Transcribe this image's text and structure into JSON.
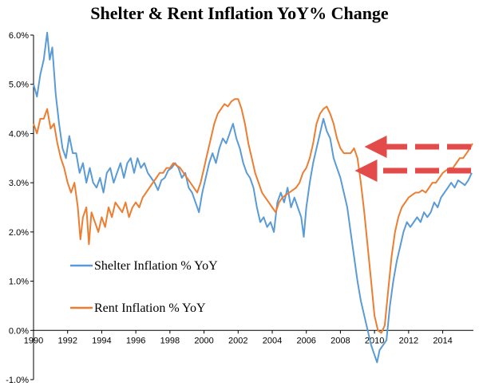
{
  "chart_data": {
    "type": "line",
    "title": "Shelter & Rent Inflation YoY% Change",
    "xlabel": "",
    "ylabel": "",
    "xlim": [
      1990,
      2015.8
    ],
    "ylim": [
      -1.0,
      6.0
    ],
    "x_ticks": [
      "1990",
      "1992",
      "1994",
      "1996",
      "1998",
      "2000",
      "2002",
      "2004",
      "2006",
      "2008",
      "2010",
      "2012",
      "2014"
    ],
    "y_ticks": [
      "6.0%",
      "5.0%",
      "4.0%",
      "3.0%",
      "2.0%",
      "1.0%",
      "0.0%",
      "-1.0%"
    ],
    "grid": false,
    "legend_position": "middle-left",
    "annotations": [
      "arrow pointing to latest Rent Inflation value",
      "arrow pointing to latest Shelter Inflation value"
    ],
    "series": [
      {
        "name": "Shelter Inflation % YoY",
        "color": "#5b9bd5",
        "points": [
          [
            1990.0,
            5.0
          ],
          [
            1990.2,
            4.75
          ],
          [
            1990.4,
            5.2
          ],
          [
            1990.6,
            5.5
          ],
          [
            1990.8,
            6.05
          ],
          [
            1990.95,
            5.5
          ],
          [
            1991.1,
            5.75
          ],
          [
            1991.3,
            4.8
          ],
          [
            1991.5,
            4.2
          ],
          [
            1991.7,
            3.7
          ],
          [
            1991.9,
            3.5
          ],
          [
            1992.1,
            3.95
          ],
          [
            1992.3,
            3.6
          ],
          [
            1992.5,
            3.6
          ],
          [
            1992.7,
            3.2
          ],
          [
            1992.9,
            3.4
          ],
          [
            1993.1,
            3.0
          ],
          [
            1993.3,
            3.3
          ],
          [
            1993.5,
            3.0
          ],
          [
            1993.7,
            2.9
          ],
          [
            1993.9,
            3.1
          ],
          [
            1994.1,
            2.8
          ],
          [
            1994.3,
            3.2
          ],
          [
            1994.5,
            3.3
          ],
          [
            1994.7,
            3.0
          ],
          [
            1994.9,
            3.2
          ],
          [
            1995.1,
            3.4
          ],
          [
            1995.3,
            3.1
          ],
          [
            1995.5,
            3.4
          ],
          [
            1995.7,
            3.5
          ],
          [
            1995.9,
            3.2
          ],
          [
            1996.1,
            3.5
          ],
          [
            1996.3,
            3.3
          ],
          [
            1996.5,
            3.4
          ],
          [
            1996.7,
            3.2
          ],
          [
            1996.9,
            3.1
          ],
          [
            1997.1,
            3.0
          ],
          [
            1997.3,
            2.85
          ],
          [
            1997.5,
            3.05
          ],
          [
            1997.7,
            3.1
          ],
          [
            1997.9,
            3.25
          ],
          [
            1998.1,
            3.3
          ],
          [
            1998.3,
            3.4
          ],
          [
            1998.5,
            3.3
          ],
          [
            1998.7,
            3.1
          ],
          [
            1998.9,
            3.2
          ],
          [
            1999.1,
            2.9
          ],
          [
            1999.3,
            2.8
          ],
          [
            1999.5,
            2.6
          ],
          [
            1999.7,
            2.4
          ],
          [
            1999.9,
            2.8
          ],
          [
            2000.1,
            3.1
          ],
          [
            2000.3,
            3.4
          ],
          [
            2000.5,
            3.6
          ],
          [
            2000.7,
            3.4
          ],
          [
            2000.9,
            3.7
          ],
          [
            2001.1,
            3.9
          ],
          [
            2001.3,
            3.8
          ],
          [
            2001.5,
            4.0
          ],
          [
            2001.7,
            4.2
          ],
          [
            2001.9,
            3.9
          ],
          [
            2002.1,
            3.7
          ],
          [
            2002.3,
            3.4
          ],
          [
            2002.5,
            3.2
          ],
          [
            2002.7,
            3.1
          ],
          [
            2002.9,
            2.9
          ],
          [
            2003.1,
            2.5
          ],
          [
            2003.3,
            2.2
          ],
          [
            2003.5,
            2.3
          ],
          [
            2003.7,
            2.1
          ],
          [
            2003.9,
            2.2
          ],
          [
            2004.1,
            2.0
          ],
          [
            2004.3,
            2.6
          ],
          [
            2004.5,
            2.8
          ],
          [
            2004.7,
            2.6
          ],
          [
            2004.9,
            2.9
          ],
          [
            2005.1,
            2.5
          ],
          [
            2005.3,
            2.7
          ],
          [
            2005.5,
            2.5
          ],
          [
            2005.7,
            2.3
          ],
          [
            2005.85,
            1.9
          ],
          [
            2006.0,
            2.5
          ],
          [
            2006.2,
            3.0
          ],
          [
            2006.4,
            3.4
          ],
          [
            2006.6,
            3.7
          ],
          [
            2006.8,
            4.0
          ],
          [
            2007.0,
            4.3
          ],
          [
            2007.2,
            4.05
          ],
          [
            2007.4,
            3.9
          ],
          [
            2007.6,
            3.5
          ],
          [
            2007.8,
            3.3
          ],
          [
            2008.0,
            3.1
          ],
          [
            2008.2,
            2.8
          ],
          [
            2008.4,
            2.5
          ],
          [
            2008.6,
            2.0
          ],
          [
            2008.8,
            1.5
          ],
          [
            2009.0,
            1.0
          ],
          [
            2009.2,
            0.6
          ],
          [
            2009.4,
            0.3
          ],
          [
            2009.6,
            0.0
          ],
          [
            2009.8,
            -0.3
          ],
          [
            2010.0,
            -0.5
          ],
          [
            2010.15,
            -0.65
          ],
          [
            2010.3,
            -0.4
          ],
          [
            2010.5,
            -0.3
          ],
          [
            2010.7,
            -0.2
          ],
          [
            2010.9,
            0.5
          ],
          [
            2011.1,
            1.0
          ],
          [
            2011.3,
            1.4
          ],
          [
            2011.5,
            1.7
          ],
          [
            2011.7,
            2.0
          ],
          [
            2011.9,
            2.2
          ],
          [
            2012.1,
            2.1
          ],
          [
            2012.3,
            2.2
          ],
          [
            2012.5,
            2.3
          ],
          [
            2012.7,
            2.2
          ],
          [
            2012.9,
            2.4
          ],
          [
            2013.1,
            2.3
          ],
          [
            2013.3,
            2.4
          ],
          [
            2013.5,
            2.6
          ],
          [
            2013.7,
            2.5
          ],
          [
            2013.9,
            2.7
          ],
          [
            2014.1,
            2.8
          ],
          [
            2014.3,
            2.9
          ],
          [
            2014.5,
            3.0
          ],
          [
            2014.7,
            2.9
          ],
          [
            2014.9,
            3.05
          ],
          [
            2015.1,
            3.0
          ],
          [
            2015.3,
            2.95
          ],
          [
            2015.5,
            3.05
          ],
          [
            2015.7,
            3.2
          ]
        ]
      },
      {
        "name": "Rent Inflation % YoY",
        "color": "#ed7d31",
        "points": [
          [
            1990.0,
            4.2
          ],
          [
            1990.2,
            4.0
          ],
          [
            1990.4,
            4.3
          ],
          [
            1990.6,
            4.3
          ],
          [
            1990.8,
            4.5
          ],
          [
            1991.0,
            4.1
          ],
          [
            1991.2,
            4.2
          ],
          [
            1991.4,
            3.8
          ],
          [
            1991.6,
            3.5
          ],
          [
            1991.8,
            3.3
          ],
          [
            1992.0,
            3.0
          ],
          [
            1992.2,
            2.8
          ],
          [
            1992.4,
            3.0
          ],
          [
            1992.6,
            2.5
          ],
          [
            1992.75,
            1.85
          ],
          [
            1992.9,
            2.3
          ],
          [
            1993.1,
            2.5
          ],
          [
            1993.25,
            1.75
          ],
          [
            1993.4,
            2.4
          ],
          [
            1993.6,
            2.2
          ],
          [
            1993.8,
            2.0
          ],
          [
            1994.0,
            2.3
          ],
          [
            1994.2,
            2.1
          ],
          [
            1994.4,
            2.5
          ],
          [
            1994.6,
            2.3
          ],
          [
            1994.8,
            2.6
          ],
          [
            1995.0,
            2.5
          ],
          [
            1995.2,
            2.4
          ],
          [
            1995.4,
            2.6
          ],
          [
            1995.6,
            2.3
          ],
          [
            1995.8,
            2.5
          ],
          [
            1996.0,
            2.6
          ],
          [
            1996.2,
            2.5
          ],
          [
            1996.4,
            2.7
          ],
          [
            1996.6,
            2.8
          ],
          [
            1996.8,
            2.9
          ],
          [
            1997.0,
            3.0
          ],
          [
            1997.2,
            3.1
          ],
          [
            1997.4,
            3.2
          ],
          [
            1997.6,
            3.2
          ],
          [
            1997.8,
            3.3
          ],
          [
            1998.0,
            3.3
          ],
          [
            1998.2,
            3.4
          ],
          [
            1998.4,
            3.35
          ],
          [
            1998.6,
            3.3
          ],
          [
            1998.8,
            3.2
          ],
          [
            1999.0,
            3.1
          ],
          [
            1999.2,
            3.0
          ],
          [
            1999.4,
            2.9
          ],
          [
            1999.6,
            2.8
          ],
          [
            1999.8,
            3.0
          ],
          [
            2000.0,
            3.3
          ],
          [
            2000.2,
            3.6
          ],
          [
            2000.4,
            3.9
          ],
          [
            2000.6,
            4.2
          ],
          [
            2000.8,
            4.4
          ],
          [
            2001.0,
            4.5
          ],
          [
            2001.2,
            4.6
          ],
          [
            2001.4,
            4.55
          ],
          [
            2001.6,
            4.65
          ],
          [
            2001.8,
            4.7
          ],
          [
            2002.0,
            4.7
          ],
          [
            2002.2,
            4.5
          ],
          [
            2002.4,
            4.2
          ],
          [
            2002.6,
            3.8
          ],
          [
            2002.8,
            3.5
          ],
          [
            2003.0,
            3.2
          ],
          [
            2003.2,
            3.0
          ],
          [
            2003.4,
            2.8
          ],
          [
            2003.6,
            2.7
          ],
          [
            2003.8,
            2.6
          ],
          [
            2004.0,
            2.5
          ],
          [
            2004.2,
            2.4
          ],
          [
            2004.4,
            2.6
          ],
          [
            2004.6,
            2.7
          ],
          [
            2004.8,
            2.75
          ],
          [
            2005.0,
            2.8
          ],
          [
            2005.2,
            2.85
          ],
          [
            2005.4,
            2.9
          ],
          [
            2005.6,
            3.0
          ],
          [
            2005.8,
            3.2
          ],
          [
            2006.0,
            3.3
          ],
          [
            2006.2,
            3.5
          ],
          [
            2006.4,
            3.8
          ],
          [
            2006.6,
            4.2
          ],
          [
            2006.8,
            4.4
          ],
          [
            2007.0,
            4.5
          ],
          [
            2007.2,
            4.55
          ],
          [
            2007.4,
            4.4
          ],
          [
            2007.6,
            4.2
          ],
          [
            2007.8,
            3.9
          ],
          [
            2008.0,
            3.7
          ],
          [
            2008.2,
            3.6
          ],
          [
            2008.4,
            3.6
          ],
          [
            2008.6,
            3.6
          ],
          [
            2008.8,
            3.7
          ],
          [
            2009.0,
            3.5
          ],
          [
            2009.2,
            3.0
          ],
          [
            2009.4,
            2.4
          ],
          [
            2009.6,
            1.7
          ],
          [
            2009.8,
            1.0
          ],
          [
            2010.0,
            0.3
          ],
          [
            2010.2,
            0.0
          ],
          [
            2010.4,
            -0.05
          ],
          [
            2010.6,
            0.1
          ],
          [
            2010.8,
            0.8
          ],
          [
            2011.0,
            1.5
          ],
          [
            2011.2,
            2.0
          ],
          [
            2011.4,
            2.3
          ],
          [
            2011.6,
            2.5
          ],
          [
            2011.8,
            2.6
          ],
          [
            2012.0,
            2.7
          ],
          [
            2012.2,
            2.75
          ],
          [
            2012.4,
            2.8
          ],
          [
            2012.6,
            2.8
          ],
          [
            2012.8,
            2.85
          ],
          [
            2013.0,
            2.8
          ],
          [
            2013.2,
            2.9
          ],
          [
            2013.4,
            3.0
          ],
          [
            2013.6,
            3.0
          ],
          [
            2013.8,
            3.1
          ],
          [
            2014.0,
            3.2
          ],
          [
            2014.2,
            3.25
          ],
          [
            2014.4,
            3.3
          ],
          [
            2014.6,
            3.3
          ],
          [
            2014.8,
            3.4
          ],
          [
            2015.0,
            3.5
          ],
          [
            2015.2,
            3.5
          ],
          [
            2015.4,
            3.6
          ],
          [
            2015.6,
            3.7
          ],
          [
            2015.75,
            3.8
          ]
        ]
      }
    ]
  }
}
